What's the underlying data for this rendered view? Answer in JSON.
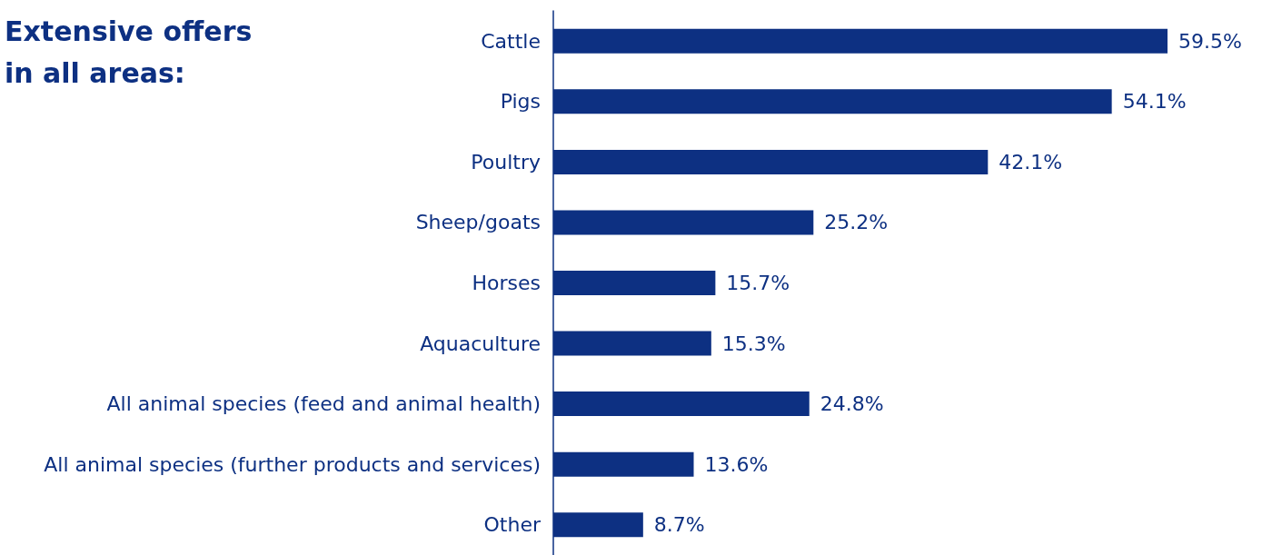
{
  "chart_data": {
    "type": "bar",
    "orientation": "horizontal",
    "title": "Extensive offers in all areas:",
    "categories": [
      "Cattle",
      "Pigs",
      "Poultry",
      "Sheep/goats",
      "Horses",
      "Aquaculture",
      "All animal species (feed and animal health)",
      "All animal species (further products and services)",
      "Other"
    ],
    "values": [
      59.5,
      54.1,
      42.1,
      25.2,
      15.7,
      15.3,
      24.8,
      13.6,
      8.7
    ],
    "value_labels": [
      "59.5%",
      "54.1%",
      "42.1%",
      "25.2%",
      "15.7%",
      "15.3%",
      "24.8%",
      "13.6%",
      "8.7%"
    ],
    "color": "#0d3082"
  }
}
